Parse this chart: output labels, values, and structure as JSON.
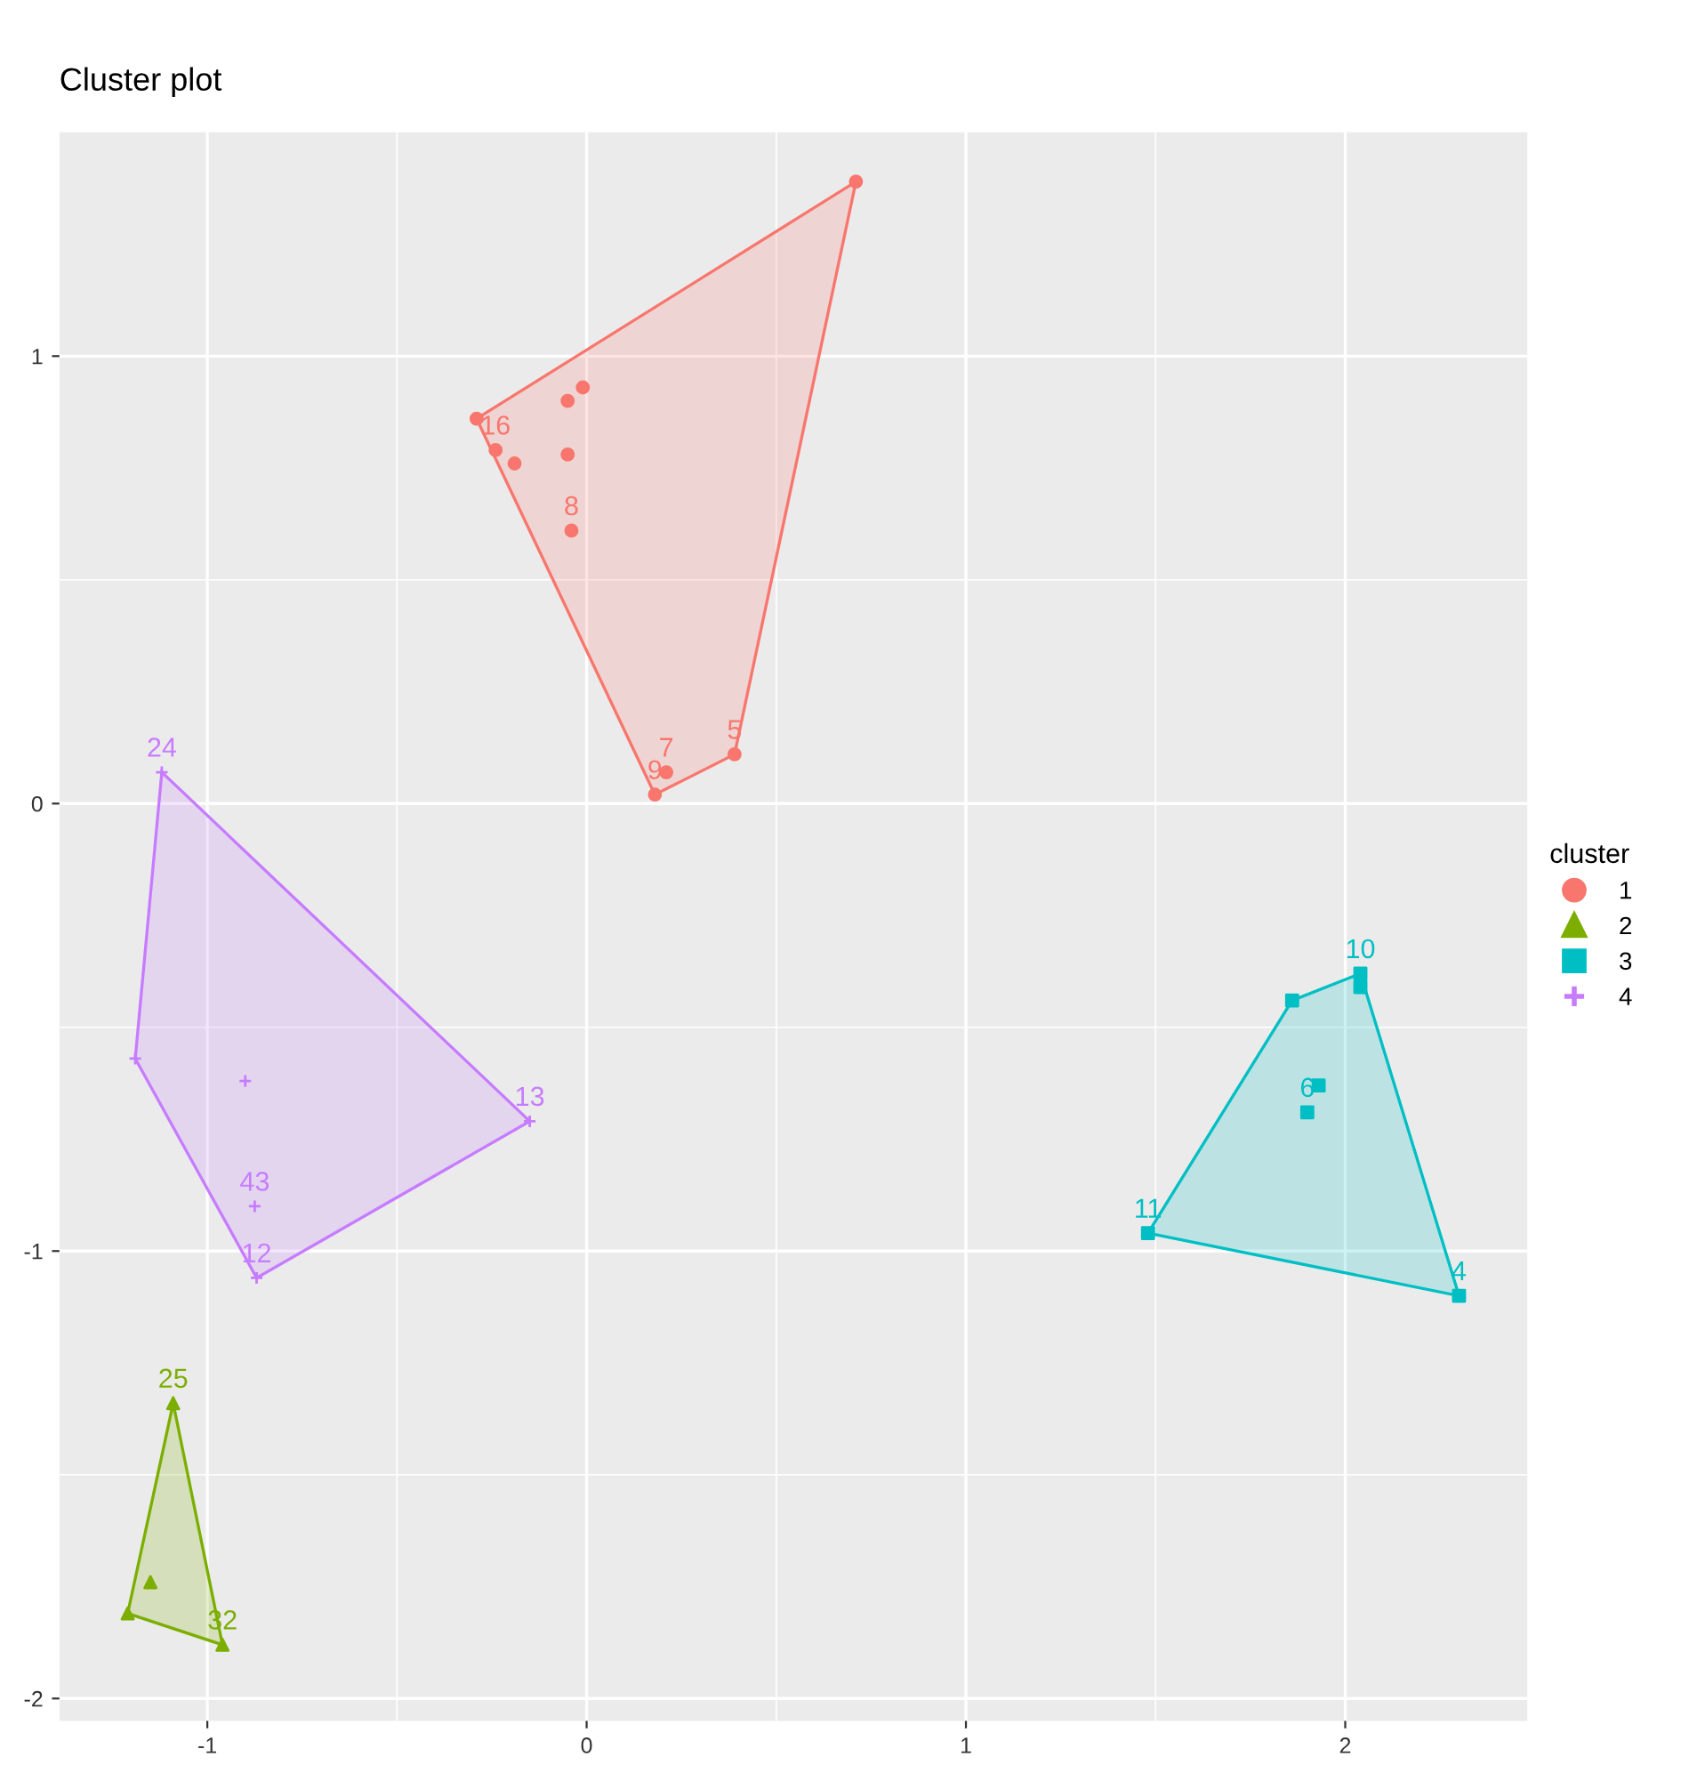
{
  "chart_data": {
    "type": "scatter",
    "title": "Cluster plot",
    "legend_title": "cluster",
    "legend": "right",
    "grid": true,
    "xlim": [
      -1.39,
      2.48
    ],
    "ylim": [
      -2.05,
      1.5
    ],
    "xticks": [
      -1,
      0,
      1,
      2
    ],
    "yticks": [
      -2,
      -1,
      0,
      1
    ],
    "series": [
      {
        "name": "1",
        "color": "#F8766D",
        "marker": "circle",
        "x": [
          0.71,
          -0.29,
          -0.24,
          -0.19,
          -0.05,
          -0.01,
          -0.05,
          -0.04,
          0.21,
          0.18,
          0.39
        ],
        "values": [
          1.39,
          0.86,
          0.79,
          0.76,
          0.9,
          0.93,
          0.78,
          0.61,
          0.07,
          0.02,
          0.11
        ]
      },
      {
        "name": "2",
        "color": "#7CAE00",
        "marker": "triangle",
        "x": [
          -1.09,
          -1.21,
          -1.15,
          -0.96
        ],
        "values": [
          -1.34,
          -1.81,
          -1.74,
          -1.88
        ]
      },
      {
        "name": "3",
        "color": "#00BFC4",
        "marker": "square",
        "x": [
          1.86,
          2.04,
          2.04,
          1.9,
          1.93,
          1.48,
          2.3
        ],
        "values": [
          -0.44,
          -0.38,
          -0.41,
          -0.69,
          -0.63,
          -0.96,
          -1.1
        ]
      },
      {
        "name": "4",
        "color": "#C77CFF",
        "marker": "cross",
        "x": [
          -1.12,
          -1.19,
          -0.9,
          -0.15,
          -0.875,
          -0.87
        ],
        "values": [
          0.07,
          -0.57,
          -0.62,
          -0.71,
          -0.9,
          -1.06
        ]
      }
    ],
    "annotations": [
      {
        "text": "16",
        "x": -0.24,
        "y": 0.79
      },
      {
        "text": "8",
        "x": -0.04,
        "y": 0.61
      },
      {
        "text": "7",
        "x": 0.21,
        "y": 0.07
      },
      {
        "text": "9",
        "x": 0.18,
        "y": 0.02
      },
      {
        "text": "5",
        "x": 0.39,
        "y": 0.11
      },
      {
        "text": "25",
        "x": -1.09,
        "y": -1.34
      },
      {
        "text": "32",
        "x": -0.96,
        "y": -1.88
      },
      {
        "text": "10",
        "x": 2.04,
        "y": -0.38
      },
      {
        "text": "6",
        "x": 1.9,
        "y": -0.69
      },
      {
        "text": "11",
        "x": 1.48,
        "y": -0.96
      },
      {
        "text": "4",
        "x": 2.3,
        "y": -1.1
      },
      {
        "text": "24",
        "x": -1.12,
        "y": 0.07
      },
      {
        "text": "13",
        "x": -0.15,
        "y": -0.71
      },
      {
        "text": "43",
        "x": -0.875,
        "y": -0.9
      },
      {
        "text": "12",
        "x": -0.87,
        "y": -1.06
      }
    ]
  }
}
